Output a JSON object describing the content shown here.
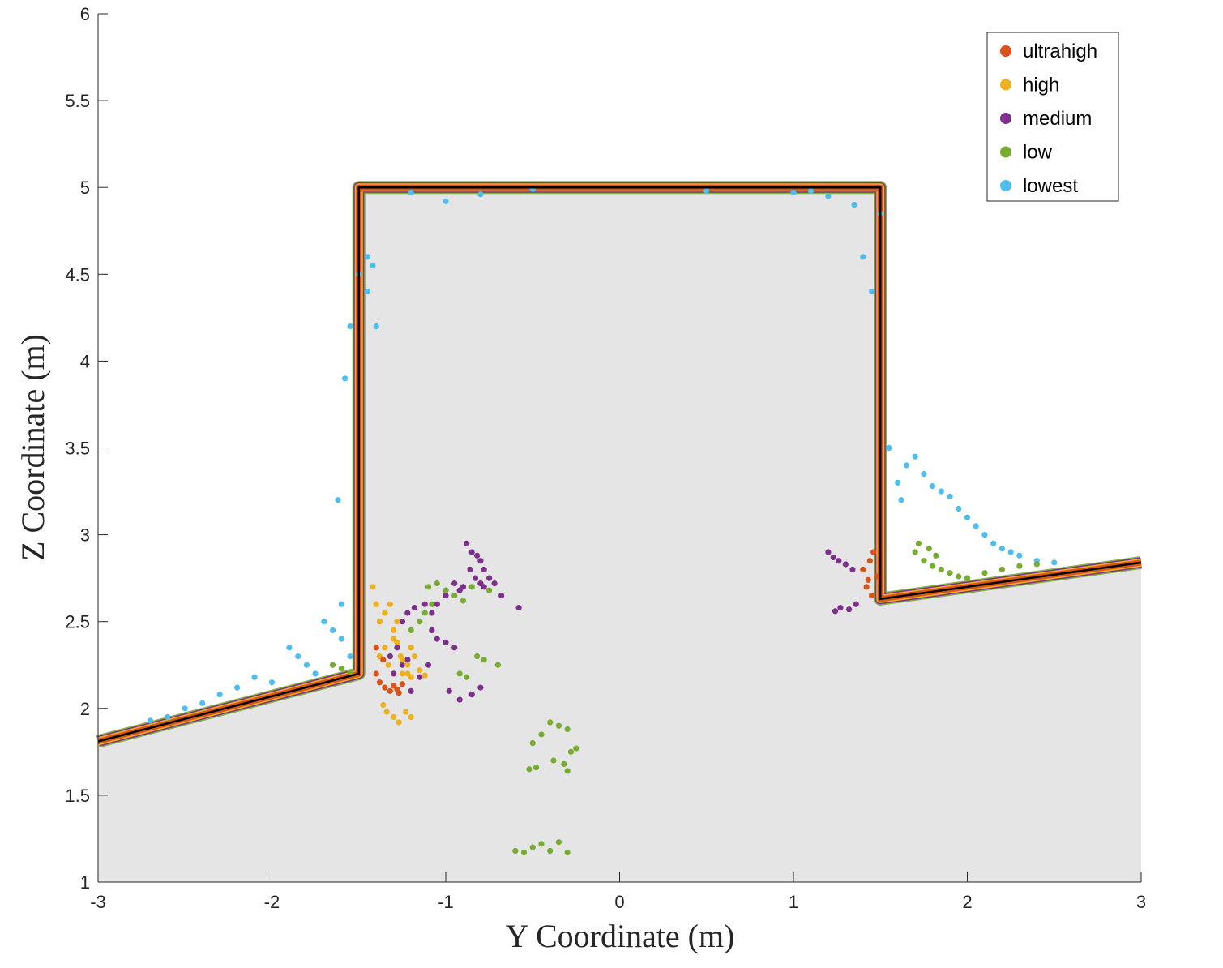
{
  "chart_data": {
    "type": "scatter",
    "xlabel": "Y Coordinate (m)",
    "ylabel": "Z Coordinate (m)",
    "xlim": [
      -3,
      3
    ],
    "ylim": [
      1,
      6
    ],
    "x_ticks": [
      "-3",
      "-2",
      "-1",
      "0",
      "1",
      "2",
      "3"
    ],
    "y_ticks": [
      "1",
      "1.5",
      "2",
      "2.5",
      "3",
      "3.5",
      "4",
      "4.5",
      "5",
      "5.5",
      "6"
    ],
    "grid": false,
    "legend_position": "top-right",
    "ground_fill_color": "#e5e5e5",
    "reference_profile": {
      "color": "#000000",
      "x": [
        -3,
        -1.5,
        -1.5,
        1.5,
        1.5,
        3
      ],
      "y": [
        1.81,
        2.2,
        5.0,
        5.0,
        2.63,
        2.84
      ]
    },
    "series": [
      {
        "name": "ultrahigh",
        "color": "#d95319",
        "x": [
          -1.4,
          -1.4,
          -1.38,
          -1.36,
          -1.35,
          -1.32,
          -1.3,
          -1.28,
          -1.27,
          -1.25,
          1.4,
          1.42,
          1.43,
          1.45,
          1.44,
          1.46,
          1.48
        ],
        "y": [
          2.35,
          2.2,
          2.15,
          2.28,
          2.12,
          2.1,
          2.13,
          2.11,
          2.09,
          2.14,
          2.8,
          2.7,
          2.74,
          2.65,
          2.85,
          2.9,
          2.76
        ]
      },
      {
        "name": "high",
        "color": "#edb120",
        "x": [
          -1.38,
          -1.35,
          -1.33,
          -1.3,
          -1.28,
          -1.26,
          -1.25,
          -1.22,
          -1.2,
          -1.18,
          -1.15,
          -1.12,
          -1.3,
          -1.28,
          -1.35,
          -1.32,
          -1.25,
          -1.22,
          -1.2,
          -1.3,
          -1.34,
          -1.36,
          -1.4,
          -1.42,
          -1.27,
          -1.2,
          -1.23,
          -1.38
        ],
        "y": [
          2.3,
          2.35,
          2.25,
          2.4,
          2.38,
          2.3,
          2.2,
          2.25,
          2.35,
          2.3,
          2.22,
          2.19,
          2.45,
          2.5,
          2.55,
          2.6,
          2.28,
          2.2,
          2.18,
          1.95,
          1.98,
          2.02,
          2.6,
          2.7,
          1.92,
          1.95,
          1.98,
          2.5
        ]
      },
      {
        "name": "medium",
        "color": "#7e2f8e",
        "x": [
          -0.88,
          -0.85,
          -0.82,
          -0.8,
          -0.78,
          -0.86,
          -0.83,
          -0.8,
          -0.9,
          -0.92,
          -0.75,
          -0.78,
          -0.72,
          -0.68,
          -0.58,
          -0.95,
          -1.0,
          -1.05,
          -1.08,
          -1.12,
          -1.18,
          -1.22,
          -1.25,
          -1.28,
          -1.32,
          -1.08,
          -1.05,
          -1.0,
          -0.95,
          -1.1,
          -1.15,
          -1.2,
          -0.98,
          -0.92,
          -1.3,
          -1.25,
          -1.22,
          -0.8,
          -0.85,
          1.2,
          1.23,
          1.26,
          1.3,
          1.34,
          1.27,
          1.32,
          1.36,
          1.24
        ],
        "y": [
          2.95,
          2.9,
          2.88,
          2.85,
          2.8,
          2.8,
          2.75,
          2.72,
          2.7,
          2.68,
          2.75,
          2.7,
          2.72,
          2.65,
          2.58,
          2.72,
          2.65,
          2.6,
          2.55,
          2.6,
          2.58,
          2.55,
          2.5,
          2.35,
          2.3,
          2.45,
          2.4,
          2.38,
          2.35,
          2.25,
          2.18,
          2.1,
          2.1,
          2.05,
          2.2,
          2.25,
          2.28,
          2.12,
          2.08,
          2.9,
          2.87,
          2.85,
          2.83,
          2.8,
          2.58,
          2.57,
          2.6,
          2.56
        ]
      },
      {
        "name": "low",
        "color": "#77ac30",
        "x": [
          -0.6,
          -0.55,
          -0.5,
          -0.45,
          -0.4,
          -0.35,
          -0.3,
          -0.5,
          -0.45,
          -0.4,
          -0.35,
          -0.3,
          -0.28,
          -0.25,
          -0.52,
          -0.48,
          -0.38,
          -0.32,
          -0.3,
          -1.1,
          -1.05,
          -1.0,
          -0.95,
          -1.08,
          -1.12,
          -1.15,
          -1.2,
          -0.9,
          -0.85,
          -0.8,
          -0.75,
          -0.82,
          -0.78,
          -0.7,
          -0.92,
          -0.88,
          -1.55,
          -1.6,
          -1.65,
          1.7,
          1.75,
          1.8,
          1.85,
          1.9,
          1.95,
          2.0,
          2.1,
          2.2,
          2.3,
          2.4,
          1.72,
          1.78,
          1.82
        ],
        "y": [
          1.18,
          1.17,
          1.2,
          1.22,
          1.18,
          1.23,
          1.17,
          1.8,
          1.85,
          1.92,
          1.9,
          1.88,
          1.75,
          1.77,
          1.65,
          1.66,
          1.7,
          1.68,
          1.64,
          2.7,
          2.72,
          2.68,
          2.65,
          2.6,
          2.55,
          2.5,
          2.45,
          2.62,
          2.7,
          2.72,
          2.68,
          2.3,
          2.28,
          2.25,
          2.2,
          2.18,
          2.21,
          2.23,
          2.25,
          2.9,
          2.85,
          2.82,
          2.8,
          2.78,
          2.76,
          2.75,
          2.78,
          2.8,
          2.82,
          2.83,
          2.95,
          2.92,
          2.88
        ]
      },
      {
        "name": "lowest",
        "color": "#4dbeee",
        "x": [
          -2.7,
          -2.6,
          -2.5,
          -2.4,
          -2.3,
          -2.2,
          -2.1,
          -2.0,
          -1.9,
          -1.85,
          -1.8,
          -1.75,
          -1.7,
          -1.65,
          -1.6,
          -1.55,
          -1.6,
          -1.62,
          -1.58,
          -1.55,
          -1.5,
          -1.45,
          -1.42,
          1.55,
          1.6,
          1.62,
          1.65,
          1.7,
          1.75,
          1.8,
          1.85,
          1.9,
          1.95,
          2.0,
          2.05,
          2.1,
          2.15,
          2.2,
          2.25,
          2.3,
          2.4,
          2.5,
          1.45,
          1.4,
          1.35,
          1.5,
          1.2,
          1.1,
          -1.2,
          -1.0,
          -0.8,
          -0.5,
          0.5,
          1.0,
          -1.45,
          -1.4
        ],
        "y": [
          1.93,
          1.95,
          2.0,
          2.03,
          2.08,
          2.12,
          2.18,
          2.15,
          2.35,
          2.3,
          2.25,
          2.2,
          2.5,
          2.45,
          2.4,
          2.3,
          2.6,
          3.2,
          3.9,
          4.2,
          4.5,
          4.6,
          4.55,
          3.5,
          3.3,
          3.2,
          3.4,
          3.45,
          3.35,
          3.28,
          3.25,
          3.22,
          3.15,
          3.1,
          3.05,
          3.0,
          2.95,
          2.92,
          2.9,
          2.88,
          2.85,
          2.84,
          4.4,
          4.6,
          4.9,
          4.85,
          4.95,
          4.98,
          4.97,
          4.92,
          4.96,
          4.99,
          4.98,
          4.97,
          4.4,
          4.2
        ]
      }
    ]
  }
}
